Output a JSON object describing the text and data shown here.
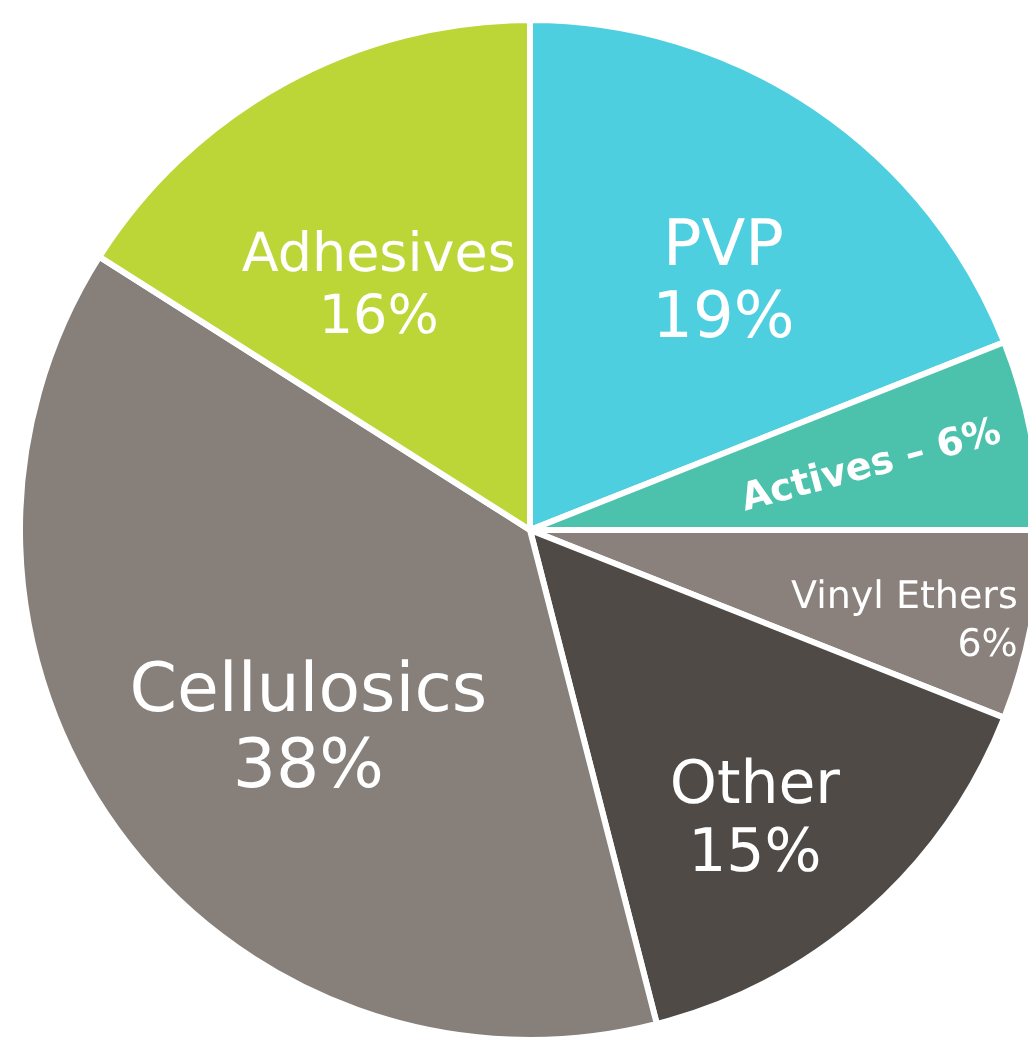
{
  "chart_data": {
    "type": "pie",
    "categories": [
      "PVP",
      "Actives –",
      "Vinyl Ethers",
      "Other",
      "Cellulosics",
      "Adhesives"
    ],
    "values": [
      19,
      6,
      6,
      15,
      38,
      16
    ],
    "value_labels": [
      "19%",
      "6%",
      "6%",
      "15%",
      "38%",
      "16%"
    ],
    "colors": [
      "#4ecfdf",
      "#4cc2ad",
      "#8a817c",
      "#4f4a46",
      "#877f7a",
      "#bcd637"
    ]
  }
}
